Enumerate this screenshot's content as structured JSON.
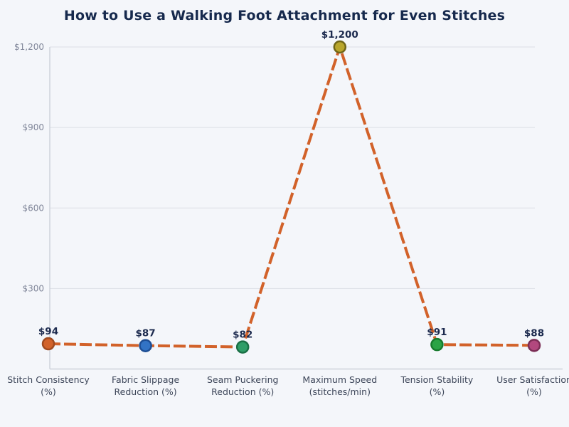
{
  "page": {
    "background": "#f4f6fa"
  },
  "chart_data": {
    "type": "line",
    "title": "How to Use a Walking Foot Attachment for Even Stitches",
    "categories": [
      "Stitch Consistency (%)",
      "Fabric Slippage Reduction (%)",
      "Seam Puckering Reduction (%)",
      "Maximum Speed (stitches/min)",
      "Tension Stability (%)",
      "User Satisfaction (%)"
    ],
    "category_label_lines": [
      [
        "Stitch Consistency",
        "(%)"
      ],
      [
        "Fabric Slippage",
        "Reduction (%)"
      ],
      [
        "Seam Puckering",
        "Reduction (%)"
      ],
      [
        "Maximum Speed",
        "(stitches/min)"
      ],
      [
        "Tension Stability",
        "(%)"
      ],
      [
        "User Satisfaction",
        "(%)"
      ]
    ],
    "values": [
      94,
      87,
      82,
      1200,
      91,
      88
    ],
    "point_labels": [
      "$94",
      "$87",
      "$82",
      "$1,200",
      "$91",
      "$88"
    ],
    "y_ticks": {
      "values": [
        300,
        600,
        900,
        1200
      ],
      "labels": [
        "$300",
        "$600",
        "$900",
        "$1,200"
      ]
    },
    "ylim": [
      0,
      1200
    ],
    "xlabel": "",
    "ylabel": "",
    "grid": "horizontal-only",
    "legend": "none",
    "line_style": "dashed",
    "colors": {
      "line": "#d2622a",
      "gridline": "#dcdfe6",
      "spine": "#c6cad4",
      "title_text": "#16294d",
      "data_label_text": "#1c2a4e",
      "tick_label_text": "#81879a",
      "category_label_text": "#3d4659",
      "point_fills": [
        "#d2622a",
        "#3273c5",
        "#2f9e68",
        "#b9a62b",
        "#2aa345",
        "#b2487e"
      ],
      "point_borders": [
        "#a04a1f",
        "#1e4e94",
        "#1a6f45",
        "#6f6517",
        "#177a2d",
        "#7b2e56"
      ]
    }
  }
}
